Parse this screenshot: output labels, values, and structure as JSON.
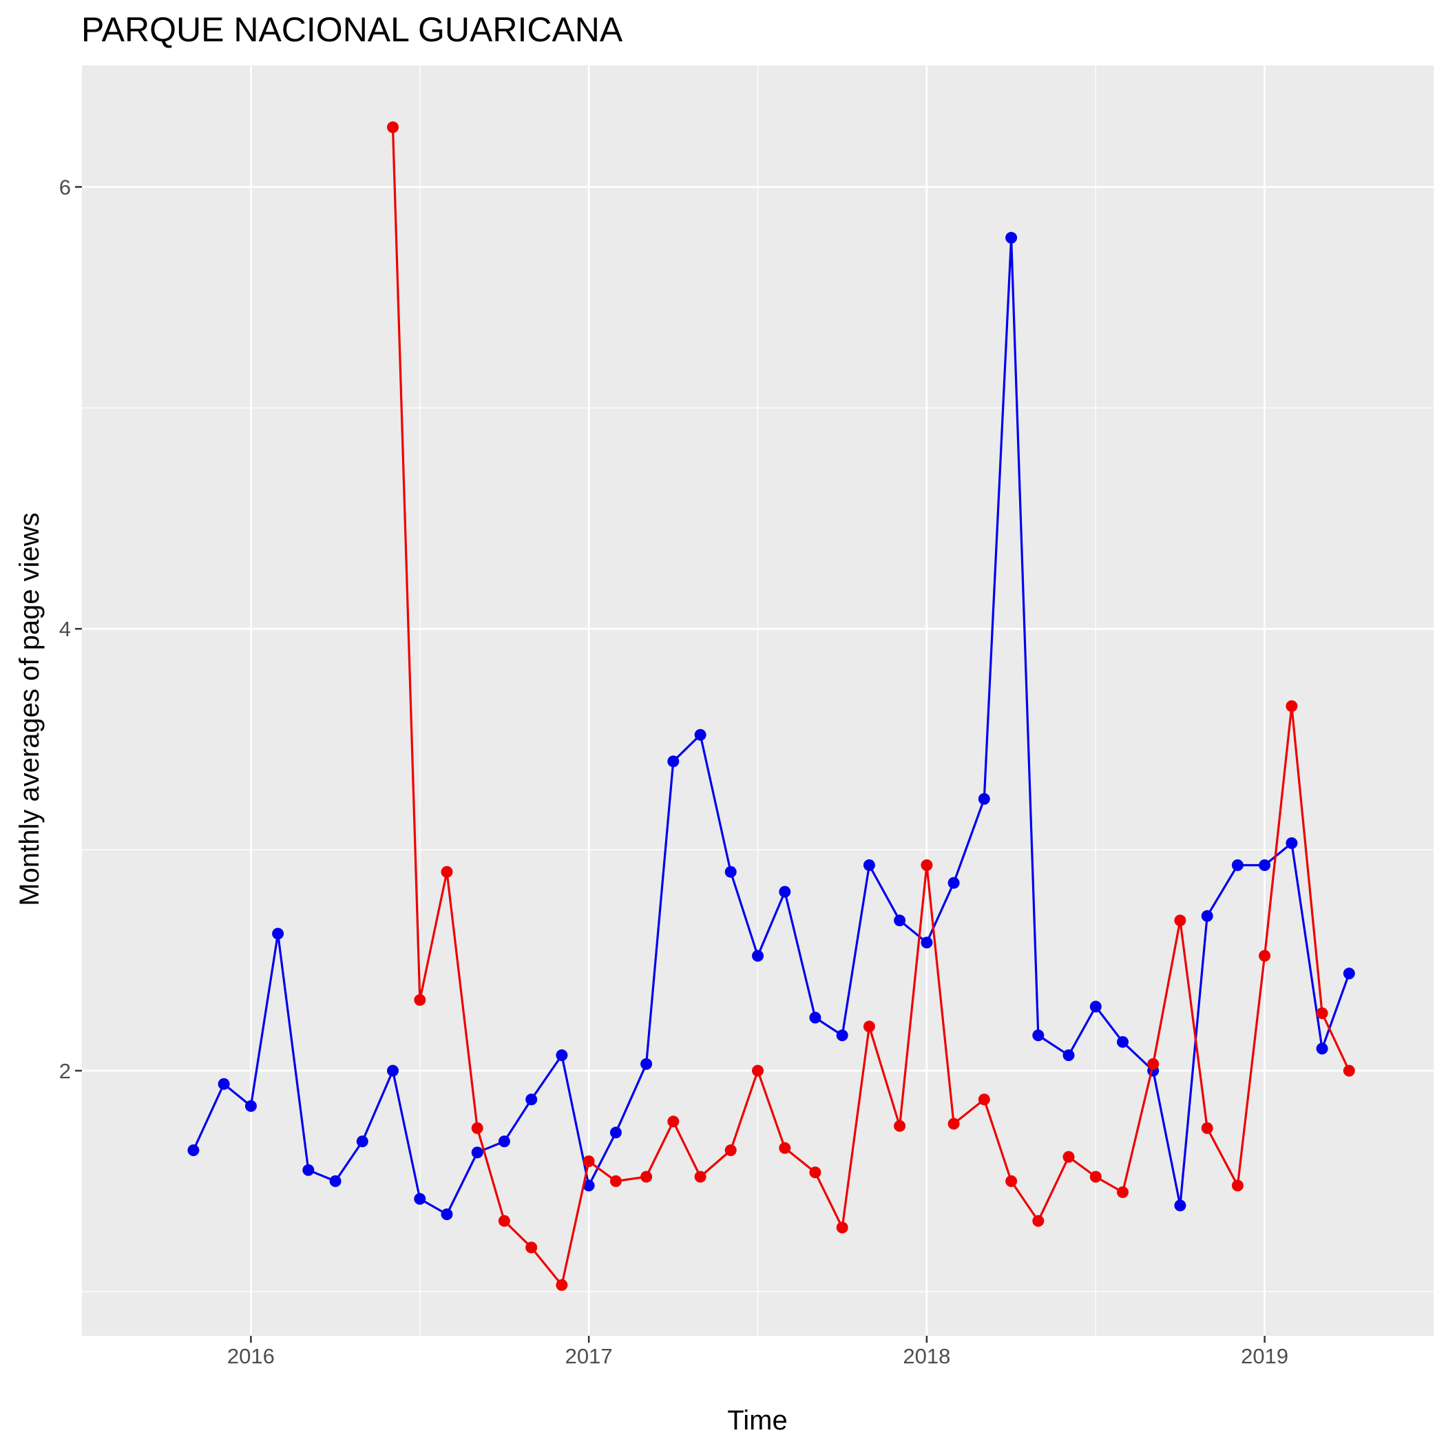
{
  "chart_data": {
    "type": "line",
    "title": "PARQUE NACIONAL GUARICANA",
    "xlabel": "Time",
    "ylabel": "Monthly averages of page views",
    "xlim": [
      2015.5,
      2019.5
    ],
    "ylim": [
      0.8,
      6.55
    ],
    "x_ticks": [
      2016,
      2017,
      2018,
      2019
    ],
    "x_tick_labels": [
      "2016",
      "2017",
      "2018",
      "2019"
    ],
    "y_ticks": [
      2,
      4,
      6
    ],
    "y_tick_labels": [
      "2",
      "4",
      "6"
    ],
    "grid": true,
    "legend": "none",
    "series": [
      {
        "name": "blue-series",
        "color": "#0000ee",
        "points": [
          {
            "x": 2015.83,
            "y": 1.64
          },
          {
            "x": 2015.92,
            "y": 1.94
          },
          {
            "x": 2016.0,
            "y": 1.84
          },
          {
            "x": 2016.08,
            "y": 2.62
          },
          {
            "x": 2016.17,
            "y": 1.55
          },
          {
            "x": 2016.25,
            "y": 1.5
          },
          {
            "x": 2016.33,
            "y": 1.68
          },
          {
            "x": 2016.42,
            "y": 2.0
          },
          {
            "x": 2016.5,
            "y": 1.42
          },
          {
            "x": 2016.58,
            "y": 1.35
          },
          {
            "x": 2016.67,
            "y": 1.63
          },
          {
            "x": 2016.75,
            "y": 1.68
          },
          {
            "x": 2016.83,
            "y": 1.87
          },
          {
            "x": 2016.92,
            "y": 2.07
          },
          {
            "x": 2017.0,
            "y": 1.48
          },
          {
            "x": 2017.08,
            "y": 1.72
          },
          {
            "x": 2017.17,
            "y": 2.03
          },
          {
            "x": 2017.25,
            "y": 3.4
          },
          {
            "x": 2017.33,
            "y": 3.52
          },
          {
            "x": 2017.42,
            "y": 2.9
          },
          {
            "x": 2017.5,
            "y": 2.52
          },
          {
            "x": 2017.58,
            "y": 2.81
          },
          {
            "x": 2017.67,
            "y": 2.24
          },
          {
            "x": 2017.75,
            "y": 2.16
          },
          {
            "x": 2017.83,
            "y": 2.93
          },
          {
            "x": 2017.92,
            "y": 2.68
          },
          {
            "x": 2018.0,
            "y": 2.58
          },
          {
            "x": 2018.08,
            "y": 2.85
          },
          {
            "x": 2018.17,
            "y": 3.23
          },
          {
            "x": 2018.25,
            "y": 5.77
          },
          {
            "x": 2018.33,
            "y": 2.16
          },
          {
            "x": 2018.42,
            "y": 2.07
          },
          {
            "x": 2018.5,
            "y": 2.29
          },
          {
            "x": 2018.58,
            "y": 2.13
          },
          {
            "x": 2018.67,
            "y": 2.0
          },
          {
            "x": 2018.75,
            "y": 1.39
          },
          {
            "x": 2018.83,
            "y": 2.7
          },
          {
            "x": 2018.92,
            "y": 2.93
          },
          {
            "x": 2019.0,
            "y": 2.93
          },
          {
            "x": 2019.08,
            "y": 3.03
          },
          {
            "x": 2019.17,
            "y": 2.1
          },
          {
            "x": 2019.25,
            "y": 2.44
          }
        ]
      },
      {
        "name": "red-series",
        "color": "#ee0000",
        "points": [
          {
            "x": 2016.42,
            "y": 6.27
          },
          {
            "x": 2016.5,
            "y": 2.32
          },
          {
            "x": 2016.58,
            "y": 2.9
          },
          {
            "x": 2016.67,
            "y": 1.74
          },
          {
            "x": 2016.75,
            "y": 1.32
          },
          {
            "x": 2016.83,
            "y": 1.2
          },
          {
            "x": 2016.92,
            "y": 1.03
          },
          {
            "x": 2017.0,
            "y": 1.59
          },
          {
            "x": 2017.08,
            "y": 1.5
          },
          {
            "x": 2017.17,
            "y": 1.52
          },
          {
            "x": 2017.25,
            "y": 1.77
          },
          {
            "x": 2017.33,
            "y": 1.52
          },
          {
            "x": 2017.42,
            "y": 1.64
          },
          {
            "x": 2017.5,
            "y": 2.0
          },
          {
            "x": 2017.58,
            "y": 1.65
          },
          {
            "x": 2017.67,
            "y": 1.54
          },
          {
            "x": 2017.75,
            "y": 1.29
          },
          {
            "x": 2017.83,
            "y": 2.2
          },
          {
            "x": 2017.92,
            "y": 1.75
          },
          {
            "x": 2018.0,
            "y": 2.93
          },
          {
            "x": 2018.08,
            "y": 1.76
          },
          {
            "x": 2018.17,
            "y": 1.87
          },
          {
            "x": 2018.25,
            "y": 1.5
          },
          {
            "x": 2018.33,
            "y": 1.32
          },
          {
            "x": 2018.42,
            "y": 1.61
          },
          {
            "x": 2018.5,
            "y": 1.52
          },
          {
            "x": 2018.58,
            "y": 1.45
          },
          {
            "x": 2018.67,
            "y": 2.03
          },
          {
            "x": 2018.75,
            "y": 2.68
          },
          {
            "x": 2018.83,
            "y": 1.74
          },
          {
            "x": 2018.92,
            "y": 1.48
          },
          {
            "x": 2019.0,
            "y": 2.52
          },
          {
            "x": 2019.08,
            "y": 3.65
          },
          {
            "x": 2019.17,
            "y": 2.26
          },
          {
            "x": 2019.25,
            "y": 2.0
          }
        ]
      }
    ]
  }
}
